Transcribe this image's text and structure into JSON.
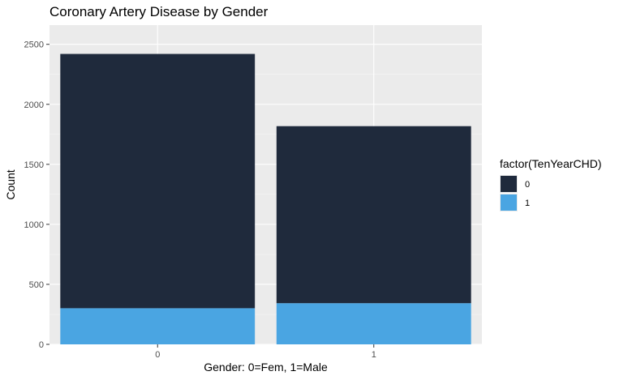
{
  "chart_data": {
    "type": "bar",
    "stacked": true,
    "title": "Coronary Artery Disease by Gender",
    "xlabel": "Gender: 0=Fem, 1=Male",
    "ylabel": "Count",
    "categories": [
      "0",
      "1"
    ],
    "ylim": [
      0,
      2500
    ],
    "yticks": [
      0,
      500,
      1000,
      1500,
      2000,
      2500
    ],
    "grid": true,
    "legend": {
      "title": "factor(TenYearCHD)",
      "placement": "right"
    },
    "series": [
      {
        "name": "0",
        "color": "#1f2a3c",
        "values": [
          2119,
          1475
        ]
      },
      {
        "name": "1",
        "color": "#4aa5e2",
        "values": [
          301,
          343
        ]
      }
    ]
  }
}
